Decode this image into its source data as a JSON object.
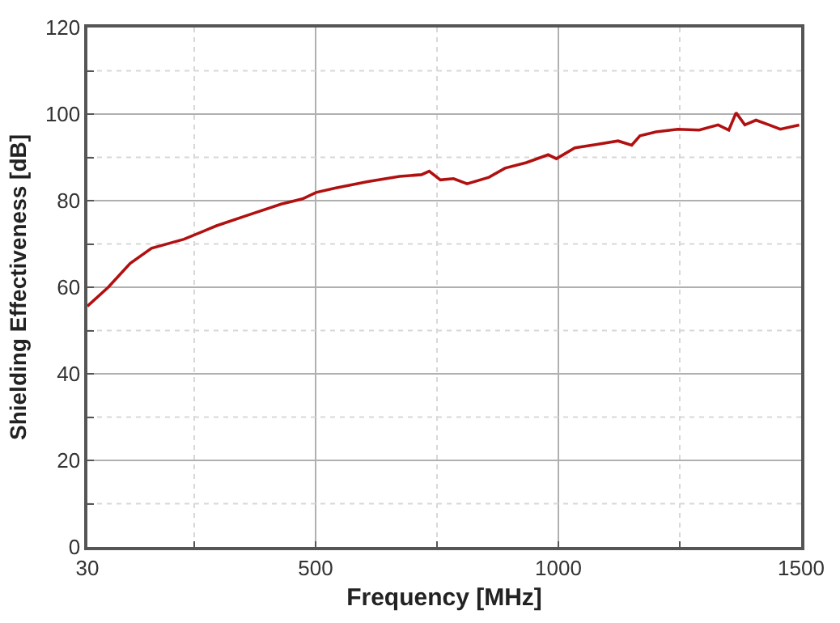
{
  "chart_data": {
    "type": "line",
    "xlabel": "Frequency [MHz]",
    "ylabel": "Shielding Effectiveness [dB]",
    "x": [
      30,
      73,
      118,
      162,
      229,
      296,
      362,
      429,
      473,
      501,
      540,
      607,
      673,
      718,
      734,
      757,
      784,
      812,
      857,
      890,
      934,
      979,
      996,
      1034,
      1079,
      1123,
      1151,
      1168,
      1201,
      1246,
      1290,
      1329,
      1351,
      1366,
      1384,
      1407,
      1434,
      1457,
      1496
    ],
    "series": [
      {
        "color": "#b01010",
        "values": [
          55.6,
          60.0,
          65.5,
          69.0,
          71.1,
          74.2,
          76.7,
          79.2,
          80.4,
          81.9,
          82.9,
          84.4,
          85.6,
          86.0,
          86.8,
          84.8,
          85.1,
          83.9,
          85.4,
          87.5,
          88.8,
          90.6,
          89.7,
          92.2,
          93.0,
          93.8,
          92.8,
          95.0,
          95.9,
          96.5,
          96.3,
          97.5,
          96.3,
          100.3,
          97.5,
          98.6,
          97.5,
          96.5,
          97.5
        ]
      }
    ],
    "xlim": [
      30,
      1500
    ],
    "xticks": [
      30,
      {
        "value": 250,
        "label": null
      },
      500,
      {
        "value": 750,
        "label": null
      },
      1000,
      {
        "value": 1250,
        "label": null
      },
      1500
    ],
    "ylim": [
      0,
      120
    ],
    "yticks": [
      0,
      {
        "value": 10,
        "label": null
      },
      20,
      {
        "value": 30,
        "label": null
      },
      40,
      {
        "value": 50,
        "label": null
      },
      60,
      {
        "value": 70,
        "label": null
      },
      80,
      {
        "value": 90,
        "label": null
      },
      100,
      {
        "value": 110,
        "label": null
      },
      120
    ],
    "grid": true,
    "marker": "none",
    "line_style": "solid"
  }
}
